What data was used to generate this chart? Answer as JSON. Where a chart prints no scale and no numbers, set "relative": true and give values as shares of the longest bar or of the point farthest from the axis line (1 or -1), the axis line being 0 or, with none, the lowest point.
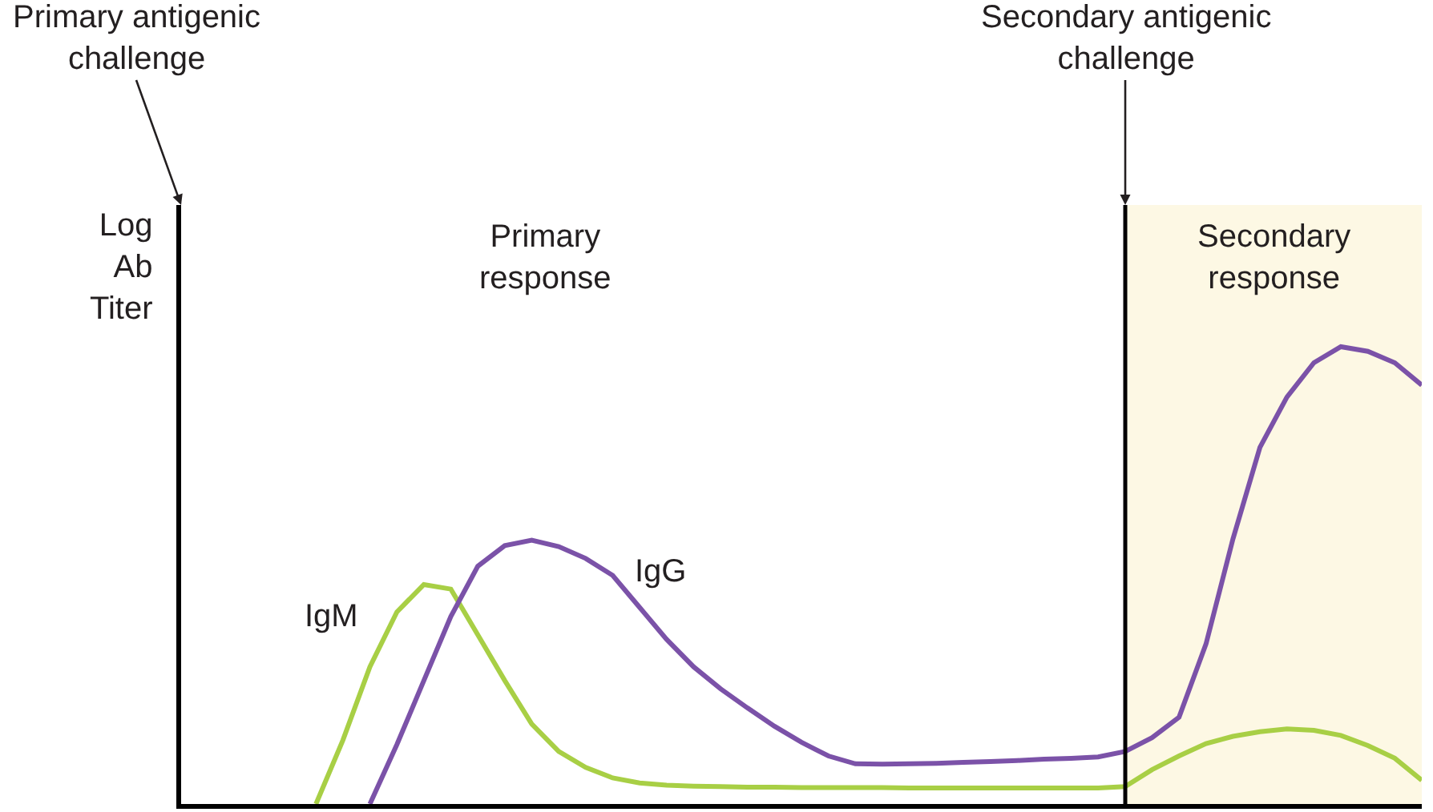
{
  "chart_data": {
    "type": "line",
    "relative": true,
    "grid": false,
    "legend": false,
    "marker": "none",
    "line_style": "solid",
    "ylabel": "Log Ab Titer",
    "categories": [
      null,
      null,
      null,
      null,
      null,
      null,
      null,
      null,
      null,
      null,
      null,
      null,
      null,
      null,
      null,
      null,
      null,
      null,
      null,
      null,
      null,
      null,
      null,
      null,
      null,
      null,
      null,
      null,
      null,
      null,
      null,
      null,
      null,
      null,
      null,
      null,
      null,
      null,
      null,
      null,
      null,
      null,
      null,
      null,
      null,
      null,
      null
    ],
    "series": [
      {
        "name": "IgM",
        "color": "#a8cf45",
        "values": [
          null,
          null,
          null,
          null,
          null,
          0,
          0.14,
          0.3,
          0.42,
          0.48,
          0.47,
          0.37,
          0.27,
          0.175,
          0.115,
          0.08,
          0.057,
          0.046,
          0.041,
          0.039,
          0.038,
          0.037,
          0.037,
          0.036,
          0.036,
          0.036,
          0.036,
          0.035,
          0.035,
          0.035,
          0.035,
          0.035,
          0.035,
          0.035,
          0.035,
          0.038,
          0.075,
          0.105,
          0.132,
          0.148,
          0.158,
          0.164,
          0.161,
          0.15,
          0.128,
          0.1,
          0.052
        ]
      },
      {
        "name": "IgG",
        "color": "#7b52a8",
        "values": [
          null,
          null,
          null,
          null,
          null,
          null,
          null,
          0,
          0.13,
          0.27,
          0.41,
          0.52,
          0.565,
          0.577,
          0.563,
          0.537,
          0.5,
          0.43,
          0.36,
          0.3,
          0.252,
          0.21,
          0.17,
          0.135,
          0.105,
          0.088,
          0.087,
          0.088,
          0.089,
          0.091,
          0.093,
          0.095,
          0.098,
          0.1,
          0.103,
          0.115,
          0.145,
          0.19,
          0.35,
          0.58,
          0.78,
          0.89,
          0.965,
          1.0,
          0.99,
          0.965,
          0.916
        ]
      }
    ],
    "annotations": [
      "Primary antigenic challenge",
      "Secondary antigenic challenge",
      "Primary response",
      "Secondary response"
    ]
  }
}
